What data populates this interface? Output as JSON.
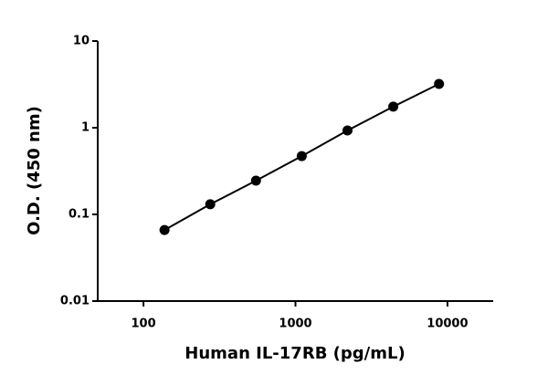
{
  "chart_data": {
    "type": "line",
    "x_label": "Human IL-17RB (pg/mL)",
    "y_label": "O.D. (450 nm)",
    "x": [
      137.5,
      275,
      550,
      1100,
      2200,
      4400,
      8800
    ],
    "series": [
      {
        "color": "#000000",
        "values": [
          0.066,
          0.131,
          0.245,
          0.47,
          0.93,
          1.75,
          3.2
        ]
      }
    ],
    "xlim": [
      50,
      20000
    ],
    "ylim": [
      0.01,
      10
    ],
    "xticks": [
      100,
      1000,
      10000
    ],
    "yticks": [
      0.01,
      0.1,
      1,
      10
    ],
    "xscale": "log",
    "yscale": "log",
    "markers": true
  }
}
